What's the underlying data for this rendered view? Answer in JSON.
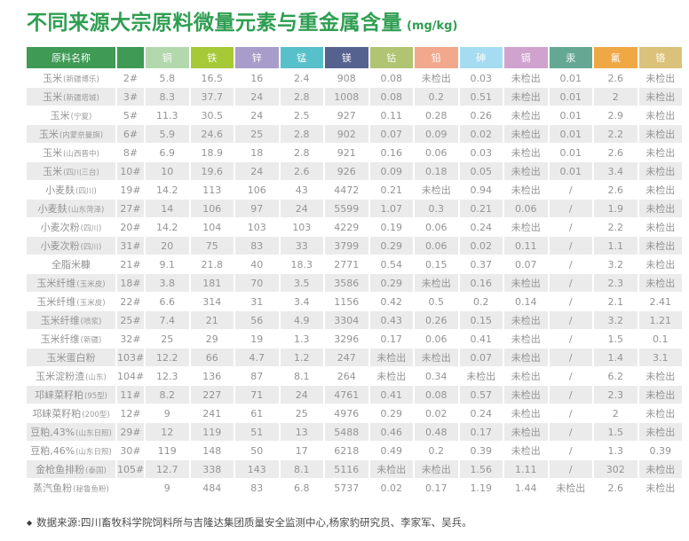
{
  "title": {
    "text": "不同来源大宗原料微量元素与重金属含量",
    "unit": "(mg/kg)",
    "color": "#2f9e52"
  },
  "table": {
    "name_header": "原料名称",
    "header_green": "#3e9a55",
    "zebra_color": "#ebebeb",
    "columns": [
      {
        "label": "铜",
        "color": "#b3d8ae"
      },
      {
        "label": "铁",
        "color": "#a5c937"
      },
      {
        "label": "锌",
        "color": "#a89cca"
      },
      {
        "label": "锰",
        "color": "#58c0ca"
      },
      {
        "label": "镁",
        "color": "#55628f"
      },
      {
        "label": "钴",
        "color": "#b0c471"
      },
      {
        "label": "铅",
        "color": "#f2a88c"
      },
      {
        "label": "砷",
        "color": "#a6dcf2"
      },
      {
        "label": "镉",
        "color": "#cfa3cd"
      },
      {
        "label": "汞",
        "color": "#64a893"
      },
      {
        "label": "氟",
        "color": "#f0a844"
      },
      {
        "label": "铬",
        "color": "#dbc27a"
      }
    ],
    "not_detected_label": "未检出",
    "rows": [
      {
        "name": "玉米",
        "sub": "(新疆博乐)",
        "num": "2#",
        "values": [
          "5.8",
          "16.5",
          "16",
          "2.4",
          "908",
          "0.08",
          "未检出",
          "0.03",
          "未检出",
          "0.01",
          "2.6",
          "未检出"
        ]
      },
      {
        "name": "玉米",
        "sub": "(新疆塔城)",
        "num": "3#",
        "values": [
          "8.3",
          "37.7",
          "24",
          "2.8",
          "1008",
          "0.08",
          "0.2",
          "0.51",
          "未检出",
          "0.01",
          "2",
          "未检出"
        ]
      },
      {
        "name": "玉米",
        "sub": "(宁夏)",
        "num": "5#",
        "values": [
          "11.3",
          "30.5",
          "24",
          "2.5",
          "927",
          "0.11",
          "0.28",
          "0.26",
          "未检出",
          "0.01",
          "2.9",
          "未检出"
        ]
      },
      {
        "name": "玉米",
        "sub": "(内蒙奈曼旗)",
        "num": "6#",
        "values": [
          "5.9",
          "24.6",
          "25",
          "2.8",
          "902",
          "0.07",
          "0.09",
          "0.02",
          "未检出",
          "0.01",
          "2.2",
          "未检出"
        ]
      },
      {
        "name": "玉米",
        "sub": "(山西晋中)",
        "num": "8#",
        "values": [
          "6.9",
          "18.9",
          "18",
          "2.8",
          "921",
          "0.16",
          "0.06",
          "0.03",
          "未检出",
          "0.01",
          "2.6",
          "未检出"
        ]
      },
      {
        "name": "玉米",
        "sub": "(四川三台)",
        "num": "10#",
        "values": [
          "10",
          "19.6",
          "24",
          "2.6",
          "926",
          "0.09",
          "0.18",
          "0.05",
          "未检出",
          "0.01",
          "3.4",
          "未检出"
        ]
      },
      {
        "name": "小麦麸",
        "sub": "(四川)",
        "num": "19#",
        "values": [
          "14.2",
          "113",
          "106",
          "43",
          "4472",
          "0.21",
          "未检出",
          "0.94",
          "未检出",
          "/",
          "2.6",
          "未检出"
        ]
      },
      {
        "name": "小麦麸",
        "sub": "(山东菏泽)",
        "num": "27#",
        "values": [
          "14",
          "106",
          "97",
          "24",
          "5599",
          "1.07",
          "0.3",
          "0.21",
          "0.06",
          "/",
          "1.9",
          "未检出"
        ]
      },
      {
        "name": "小麦次粉",
        "sub": "(四川)",
        "num": "20#",
        "values": [
          "14.2",
          "104",
          "103",
          "103",
          "4229",
          "0.19",
          "0.06",
          "0.24",
          "未检出",
          "/",
          "2.2",
          "未检出"
        ]
      },
      {
        "name": "小麦次粉",
        "sub": "(四川)",
        "num": "31#",
        "values": [
          "20",
          "75",
          "83",
          "33",
          "3799",
          "0.29",
          "0.06",
          "0.02",
          "0.11",
          "/",
          "1.1",
          "未检出"
        ]
      },
      {
        "name": "全脂米糠",
        "sub": "",
        "num": "21#",
        "values": [
          "9.1",
          "21.8",
          "40",
          "18.3",
          "2771",
          "0.54",
          "0.15",
          "0.37",
          "0.07",
          "/",
          "3.2",
          "未检出"
        ]
      },
      {
        "name": "玉米纤维",
        "sub": "(玉米皮)",
        "num": "18#",
        "values": [
          "3.8",
          "181",
          "70",
          "3.5",
          "3586",
          "0.29",
          "未检出",
          "0.16",
          "未检出",
          "/",
          "2.3",
          "未检出"
        ]
      },
      {
        "name": "玉米纤维",
        "sub": "(玉米皮)",
        "num": "22#",
        "values": [
          "6.6",
          "314",
          "31",
          "3.4",
          "1156",
          "0.42",
          "0.5",
          "0.2",
          "0.14",
          "/",
          "2.1",
          "2.41"
        ]
      },
      {
        "name": "玉米纤维",
        "sub": "(喷浆)",
        "num": "25#",
        "values": [
          "7.4",
          "21",
          "56",
          "4.9",
          "3304",
          "0.43",
          "0.26",
          "0.15",
          "未检出",
          "/",
          "3.2",
          "1.21"
        ]
      },
      {
        "name": "玉米纤维",
        "sub": "(新疆)",
        "num": "32#",
        "values": [
          "25",
          "29",
          "19",
          "1.3",
          "3296",
          "0.17",
          "0.06",
          "0.41",
          "未检出",
          "/",
          "1.5",
          "0.1"
        ]
      },
      {
        "name": "玉米蛋白粉",
        "sub": "",
        "num": "103#",
        "values": [
          "12.2",
          "66",
          "4.7",
          "1.2",
          "247",
          "未检出",
          "未检出",
          "0.07",
          "未检出",
          "/",
          "1.4",
          "3.1"
        ]
      },
      {
        "name": "玉米淀粉渣",
        "sub": "(山东)",
        "num": "104#",
        "values": [
          "12.3",
          "136",
          "87",
          "8.1",
          "264",
          "未检出",
          "0.34",
          "未检出",
          "未检出",
          "/",
          "6.2",
          "未检出"
        ]
      },
      {
        "name": "邛崃菜籽粕",
        "sub": "(95型)",
        "num": "11#",
        "values": [
          "8.2",
          "227",
          "71",
          "24",
          "4761",
          "0.41",
          "0.08",
          "0.57",
          "未检出",
          "/",
          "2.3",
          "未检出"
        ]
      },
      {
        "name": "邛崃菜籽粕",
        "sub": "(200型)",
        "num": "12#",
        "values": [
          "9",
          "241",
          "61",
          "25",
          "4976",
          "0.29",
          "0.02",
          "0.24",
          "未检出",
          "/",
          "2",
          "未检出"
        ]
      },
      {
        "name": "豆粕,43%",
        "sub": "(山东日照)",
        "num": "29#",
        "values": [
          "12",
          "119",
          "51",
          "13",
          "5488",
          "0.46",
          "0.48",
          "0.17",
          "未检出",
          "/",
          "1.5",
          "未检出"
        ]
      },
      {
        "name": "豆粕,46%",
        "sub": "(山东日照)",
        "num": "30#",
        "values": [
          "119",
          "148",
          "50",
          "17",
          "6218",
          "0.49",
          "0.2",
          "0.39",
          "未检出",
          "/",
          "1.3",
          "0.39"
        ]
      },
      {
        "name": "金枪鱼排粉",
        "sub": "(泰国)",
        "num": "105#",
        "values": [
          "12.7",
          "338",
          "143",
          "8.1",
          "5116",
          "未检出",
          "未检出",
          "1.56",
          "1.11",
          "/",
          "302",
          "未检出"
        ]
      },
      {
        "name": "蒸汽鱼粉",
        "sub": "(秘鲁鱼粉)",
        "num": "",
        "values": [
          "9",
          "484",
          "83",
          "6.8",
          "5737",
          "0.02",
          "0.17",
          "1.19",
          "1.44",
          "未检出",
          "2.6",
          "未检出"
        ]
      }
    ]
  },
  "footer": {
    "bullet": "◆",
    "text": "数据来源:四川畜牧科学院饲料所与吉隆达集团质量安全监测中心,杨家豹研究员、李家军、吴兵。"
  }
}
